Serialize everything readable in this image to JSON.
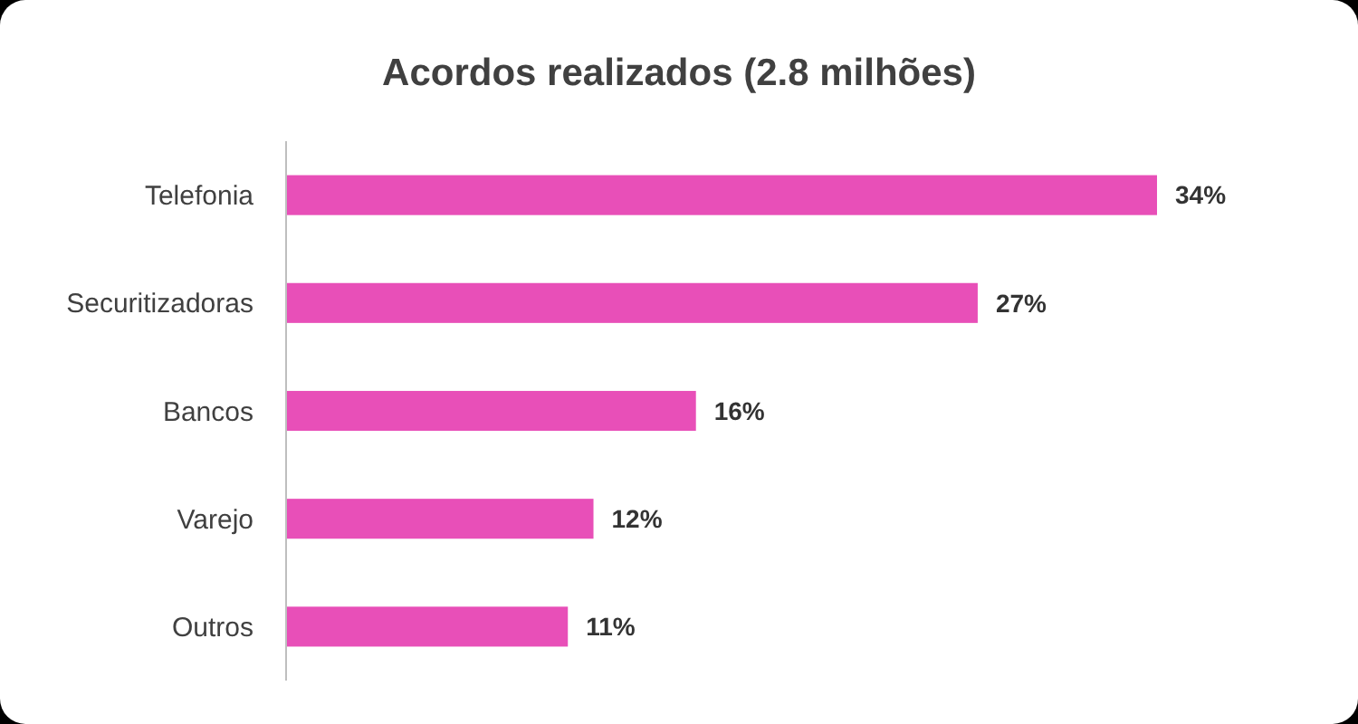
{
  "chart_data": {
    "type": "bar",
    "orientation": "horizontal",
    "title": "Acordos realizados (2.8 milhões)",
    "categories": [
      "Telefonia",
      "Securitizadoras",
      "Bancos",
      "Varejo",
      "Outros"
    ],
    "values": [
      34,
      27,
      16,
      12,
      11
    ],
    "value_labels": [
      "34%",
      "27%",
      "16%",
      "12%",
      "11%"
    ],
    "color": "#e84fb8"
  }
}
